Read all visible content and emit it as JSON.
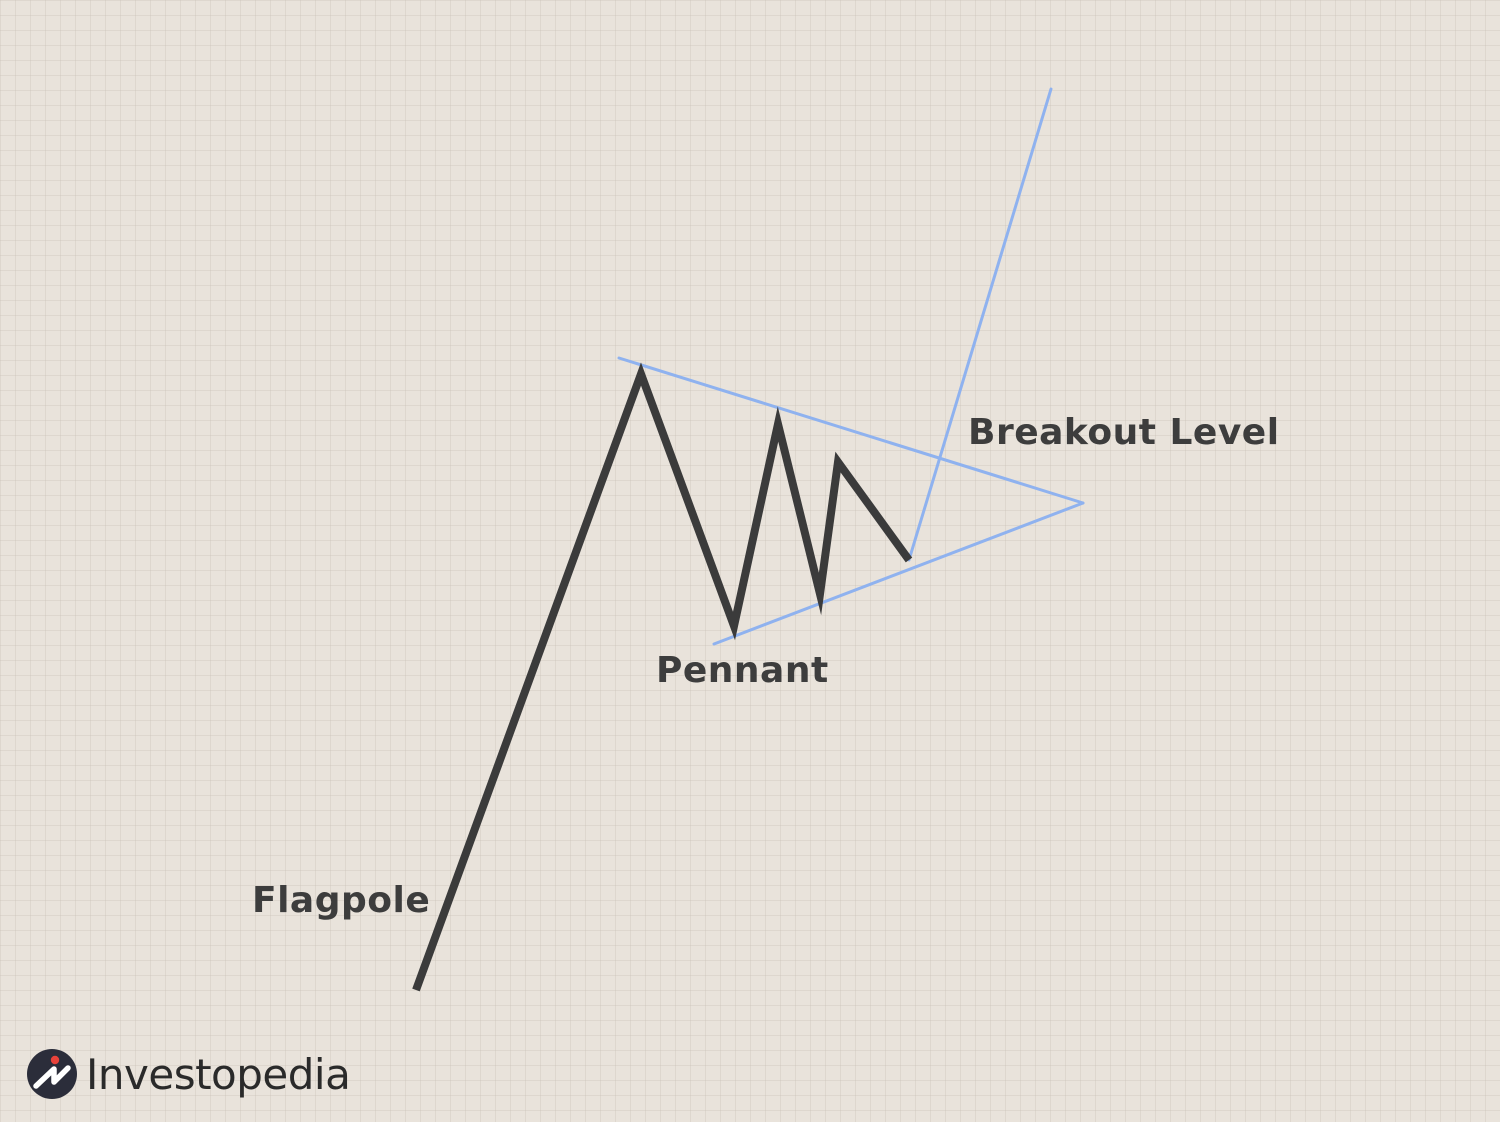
{
  "labels": {
    "breakout": "Breakout Level",
    "pennant": "Pennant",
    "flagpole": "Flagpole"
  },
  "brand": {
    "name": "Investopedia",
    "logo_icon": "investopedia-i-logo"
  },
  "colors": {
    "background": "#e9e3db",
    "price_line": "#3b3b3b",
    "trend_lines": "#8fb2ef",
    "label_text": "#3d3d3d",
    "logo_dot": "#e8423a",
    "logo_circle": "#2b2d3a"
  }
}
